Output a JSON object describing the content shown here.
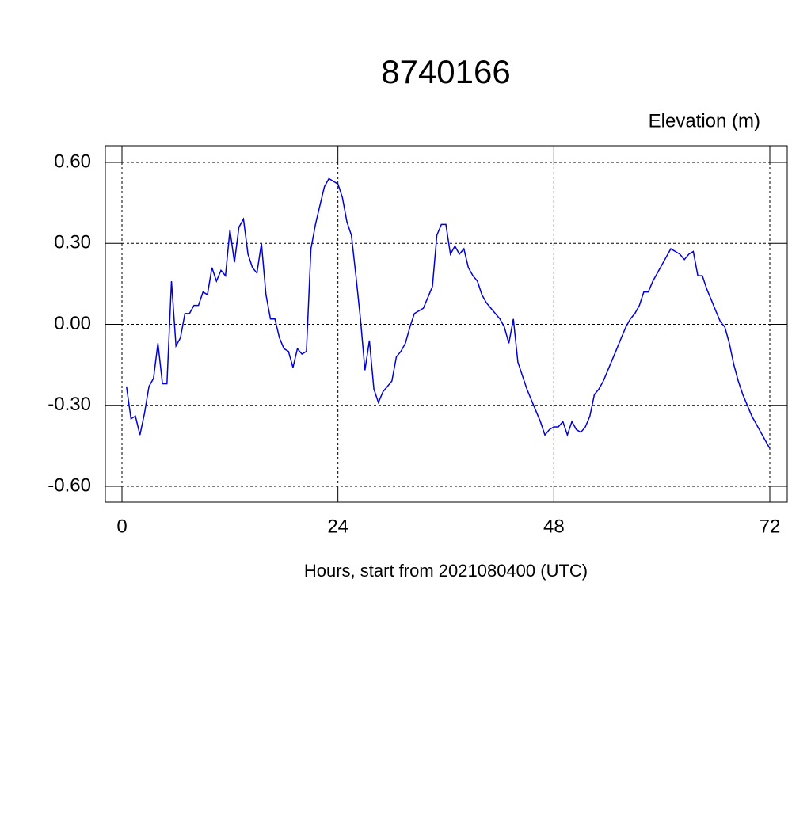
{
  "chart_data": {
    "type": "line",
    "title": "8740166",
    "subtitle": "Elevation (m)",
    "x_label": "Hours, start from 2021080400 (UTC)",
    "xlim": [
      0,
      72
    ],
    "ylim": [
      -0.6,
      0.6
    ],
    "xticks": [
      0,
      24,
      48,
      72
    ],
    "yticks": [
      {
        "value": 0.6,
        "label": "0.60"
      },
      {
        "value": 0.3,
        "label": "0.30"
      },
      {
        "value": 0,
        "label": "0.00"
      },
      {
        "value": -0.3,
        "label": "-0.30"
      },
      {
        "value": -0.6,
        "label": "-0.60"
      }
    ],
    "grid": true,
    "series": [
      {
        "color": "#0000dd",
        "x": [
          0.5,
          1,
          1.5,
          2,
          2.5,
          3,
          3.5,
          4,
          4.5,
          5,
          5.5,
          6,
          6.5,
          7,
          7.5,
          8,
          8.5,
          9,
          9.5,
          10,
          10.5,
          11,
          11.5,
          12,
          12.5,
          13,
          13.5,
          14,
          14.5,
          15,
          15.5,
          16,
          16.5,
          17,
          17.5,
          18,
          18.5,
          19,
          19.5,
          20,
          20.5,
          21,
          21.5,
          22,
          22.5,
          23,
          23.5,
          24,
          24.5,
          25,
          25.5,
          26,
          26.5,
          27,
          27.5,
          28,
          28.5,
          29,
          29.5,
          30,
          30.5,
          31,
          31.5,
          32,
          32.5,
          33,
          33.5,
          34,
          34.5,
          35,
          35.5,
          36,
          36.5,
          37,
          37.5,
          38,
          38.5,
          39,
          39.5,
          40,
          40.5,
          41,
          41.5,
          42,
          42.5,
          43,
          43.5,
          44,
          44.5,
          45,
          45.5,
          46,
          46.5,
          47,
          47.5,
          48,
          48.5,
          49,
          49.5,
          50,
          50.5,
          51,
          51.5,
          52,
          52.5,
          53,
          53.5,
          54,
          54.5,
          55,
          55.5,
          56,
          56.5,
          57,
          57.5,
          58,
          58.5,
          59,
          59.5,
          60,
          60.5,
          61,
          61.5,
          62,
          62.5,
          63,
          63.5,
          64,
          64.5,
          65,
          65.5,
          66,
          66.5,
          67,
          67.5,
          68,
          68.5,
          69,
          69.5,
          70,
          70.5,
          71,
          71.5,
          72
        ],
        "values": [
          -0.23,
          -0.35,
          -0.34,
          -0.41,
          -0.33,
          -0.23,
          -0.2,
          -0.07,
          -0.22,
          -0.22,
          0.16,
          -0.08,
          -0.05,
          0.04,
          0.04,
          0.07,
          0.07,
          0.12,
          0.11,
          0.21,
          0.16,
          0.2,
          0.18,
          0.35,
          0.23,
          0.36,
          0.39,
          0.26,
          0.21,
          0.19,
          0.3,
          0.11,
          0.02,
          0.02,
          -0.05,
          -0.09,
          -0.1,
          -0.16,
          -0.09,
          -0.11,
          -0.1,
          0.28,
          0.37,
          0.44,
          0.51,
          0.54,
          0.53,
          0.52,
          0.47,
          0.38,
          0.33,
          0.18,
          0.02,
          -0.17,
          -0.06,
          -0.24,
          -0.29,
          -0.25,
          -0.23,
          -0.21,
          -0.12,
          -0.1,
          -0.07,
          -0.01,
          0.04,
          0.05,
          0.06,
          0.1,
          0.14,
          0.33,
          0.37,
          0.37,
          0.26,
          0.29,
          0.26,
          0.28,
          0.21,
          0.18,
          0.16,
          0.11,
          0.08,
          0.06,
          0.04,
          0.02,
          -0.01,
          -0.07,
          0.02,
          -0.14,
          -0.19,
          -0.24,
          -0.28,
          -0.32,
          -0.36,
          -0.41,
          -0.39,
          -0.38,
          -0.38,
          -0.36,
          -0.41,
          -0.36,
          -0.39,
          -0.4,
          -0.38,
          -0.34,
          -0.26,
          -0.24,
          -0.21,
          -0.17,
          -0.13,
          -0.09,
          -0.05,
          -0.01,
          0.02,
          0.04,
          0.07,
          0.12,
          0.12,
          0.16,
          0.19,
          0.22,
          0.25,
          0.28,
          0.27,
          0.26,
          0.24,
          0.26,
          0.27,
          0.18,
          0.18,
          0.13,
          0.09,
          0.05,
          0.01,
          -0.01,
          -0.07,
          -0.15,
          -0.21,
          -0.26,
          -0.3,
          -0.34,
          -0.37,
          -0.4,
          -0.43,
          -0.46
        ]
      }
    ]
  }
}
